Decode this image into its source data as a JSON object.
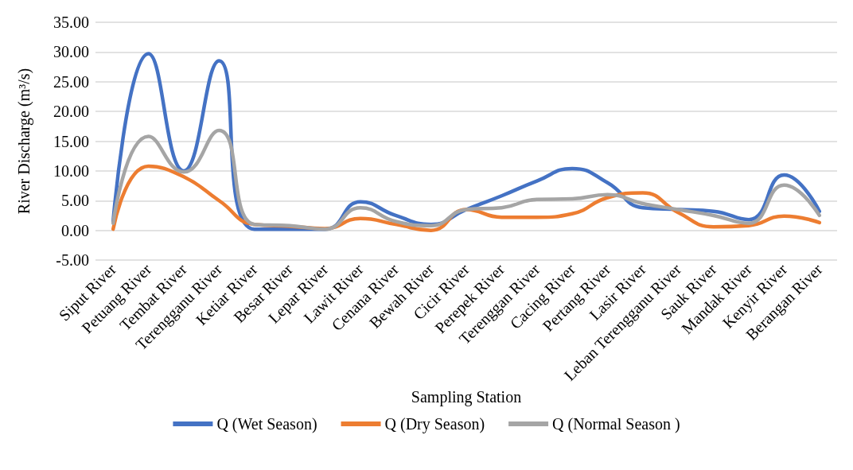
{
  "chart_data": {
    "type": "line",
    "xlabel": "Sampling Station",
    "ylabel": "River Discharge (m³/s)",
    "categories": [
      "Siput River",
      "Petuang River",
      "Tembat River",
      "Terengganu River",
      "Ketiar River",
      "Besar River",
      "Lepar River",
      "Lawit River",
      "Cenana River",
      "Bewah River",
      "Cicir River",
      "Perepek River",
      "Terenggan River",
      "Cacing River",
      "Pertang River",
      "Lasir River",
      "Leban Terengganu River",
      "Sauk River",
      "Mandak River",
      "Kenyir River",
      "Berangan River"
    ],
    "series": [
      {
        "name": "Q (Wet Season)",
        "color": "#4472c4",
        "values": [
          1.5,
          29.7,
          10,
          28.5,
          0.2,
          null,
          0.2,
          4.8,
          2.5,
          1.0,
          3.5,
          5.8,
          8.3,
          10.4,
          8.0,
          3.8,
          3.5,
          3.2,
          1.8,
          9.3,
          3.2
        ]
      },
      {
        "name": "Q (Dry Season)",
        "color": "#ed7d31",
        "values": [
          0.2,
          10.8,
          9.0,
          5.0,
          1.0,
          0.7,
          0.3,
          2.0,
          1.0,
          0.0,
          3.5,
          2.2,
          2.2,
          2.8,
          5.5,
          6.3,
          3.0,
          0.6,
          0.8,
          2.4,
          1.3
        ]
      },
      {
        "name": "Q (Normal Season )",
        "color": "#a5a5a5",
        "values": [
          1.2,
          15.8,
          9.8,
          16.8,
          1.0,
          0.8,
          0.2,
          3.8,
          1.5,
          0.8,
          3.5,
          3.8,
          5.2,
          5.3,
          6.0,
          4.5,
          3.5,
          2.5,
          1.2,
          7.6,
          2.5
        ]
      }
    ],
    "ylim": [
      -5,
      35
    ],
    "yticks": [
      {
        "value": -5,
        "label": "-5.00"
      },
      {
        "value": 0,
        "label": "0.00"
      },
      {
        "value": 5,
        "label": "5.00"
      },
      {
        "value": 10,
        "label": "10.00"
      },
      {
        "value": 15,
        "label": "15.00"
      },
      {
        "value": 20,
        "label": "20.00"
      },
      {
        "value": 25,
        "label": "25.00"
      },
      {
        "value": 30,
        "label": "30.00"
      },
      {
        "value": 35,
        "label": "35.00"
      }
    ],
    "grid": "y",
    "legend": "bottom",
    "marker": "none",
    "line_style": "solid"
  }
}
